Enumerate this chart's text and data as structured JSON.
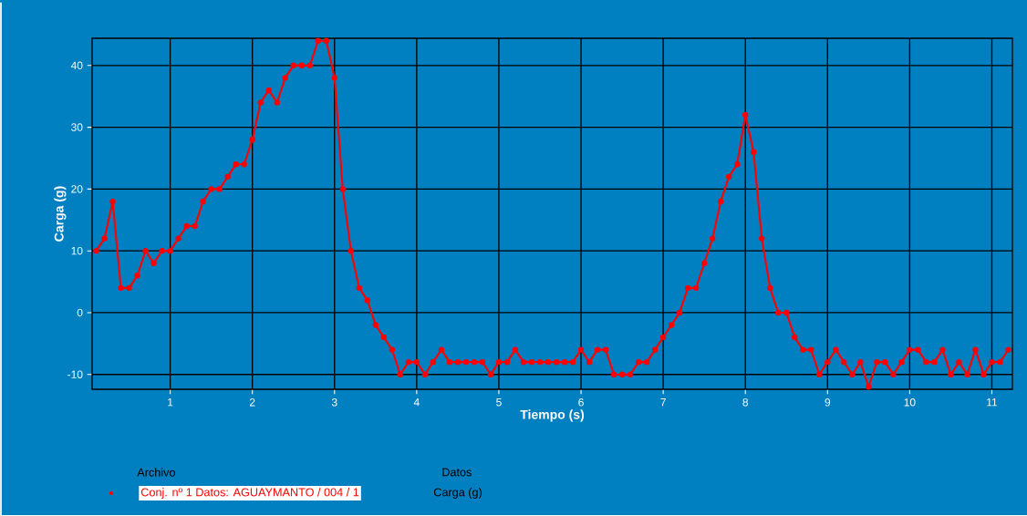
{
  "chart_data": {
    "type": "line",
    "xlabel": "Tiempo (s)",
    "ylabel": "Carga (g)",
    "legend_title": "Archivo",
    "annotations": [
      "Datos",
      "Carga (g)"
    ],
    "x": [
      0.1,
      0.2,
      0.3,
      0.4,
      0.5,
      0.6,
      0.7,
      0.8,
      0.9,
      1.0,
      1.1,
      1.2,
      1.3,
      1.4,
      1.5,
      1.6,
      1.7,
      1.8,
      1.9,
      2.0,
      2.1,
      2.2,
      2.3,
      2.4,
      2.5,
      2.6,
      2.7,
      2.8,
      2.9,
      3.0,
      3.1,
      3.2,
      3.3,
      3.4,
      3.5,
      3.6,
      3.7,
      3.8,
      3.9,
      4.0,
      4.1,
      4.2,
      4.3,
      4.4,
      4.5,
      4.6,
      4.7,
      4.8,
      4.9,
      5.0,
      5.1,
      5.2,
      5.3,
      5.4,
      5.5,
      5.6,
      5.7,
      5.8,
      5.9,
      6.0,
      6.1,
      6.2,
      6.3,
      6.4,
      6.5,
      6.6,
      6.7,
      6.8,
      6.9,
      7.0,
      7.1,
      7.2,
      7.3,
      7.4,
      7.5,
      7.6,
      7.7,
      7.8,
      7.9,
      8.0,
      8.1,
      8.2,
      8.3,
      8.4,
      8.5,
      8.6,
      8.7,
      8.8,
      8.9,
      9.0,
      9.1,
      9.2,
      9.3,
      9.4,
      9.5,
      9.6,
      9.7,
      9.8,
      9.9,
      10.0,
      10.1,
      10.2,
      10.3,
      10.4,
      10.5,
      10.6,
      10.7,
      10.8,
      10.9,
      11.0,
      11.1,
      11.2
    ],
    "series": [
      {
        "name": "Conj. nº 1 Datos: AGUAYMANTO / 004 / 1",
        "color": "#ff0000",
        "values": [
          10,
          12,
          18,
          4,
          4,
          6,
          10,
          8,
          10,
          10,
          12,
          14,
          14,
          18,
          20,
          20,
          22,
          24,
          24,
          28,
          34,
          36,
          34,
          38,
          40,
          40,
          40,
          44,
          44,
          38,
          20,
          10,
          4,
          2,
          -2,
          -4,
          -6,
          -10,
          -8,
          -8,
          -10,
          -8,
          -6,
          -8,
          -8,
          -8,
          -8,
          -8,
          -10,
          -8,
          -8,
          -6,
          -8,
          -8,
          -8,
          -8,
          -8,
          -8,
          -8,
          -6,
          -8,
          -6,
          -6,
          -10,
          -10,
          -10,
          -8,
          -8,
          -6,
          -4,
          -2,
          0,
          4,
          4,
          8,
          12,
          18,
          22,
          24,
          32,
          26,
          12,
          4,
          0,
          0,
          -4,
          -6,
          -6,
          -10,
          -8,
          -6,
          -8,
          -10,
          -8,
          -12,
          -8,
          -8,
          -10,
          -8,
          -6,
          -6,
          -8,
          -8,
          -6,
          -10,
          -8,
          -10,
          -6,
          -10,
          -8,
          -8,
          -6
        ]
      }
    ],
    "xlim": [
      0.05,
      11.25
    ],
    "ylim": [
      -12.4,
      44.4
    ],
    "xticks": [
      1,
      2,
      3,
      4,
      5,
      6,
      7,
      8,
      9,
      10,
      11
    ],
    "yticks": [
      -10,
      0,
      10,
      20,
      30,
      40
    ],
    "grid": true,
    "legend": "bottom",
    "marker": "circle",
    "line_style": "solid"
  }
}
